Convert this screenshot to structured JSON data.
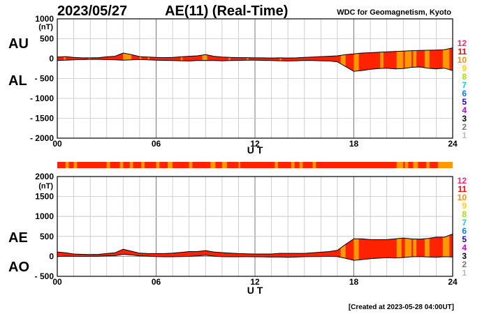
{
  "header": {
    "date": "2023/05/27",
    "title": "AE(11) (Real-Time)",
    "source": "WDC for Geomagnetism, Kyoto"
  },
  "footer": {
    "created": "[Created at 2023-05-28 04:00UT]"
  },
  "colors": {
    "fill": "#ff2200",
    "band": "#ff9900"
  },
  "legend": [
    {
      "label": "12",
      "color": "#ff2277"
    },
    {
      "label": "11",
      "color": "#ff0000"
    },
    {
      "label": "10",
      "color": "#ff8c00"
    },
    {
      "label": "9",
      "color": "#ffd400"
    },
    {
      "label": "8",
      "color": "#a8e000"
    },
    {
      "label": "7",
      "color": "#00d4e4"
    },
    {
      "label": "6",
      "color": "#0080ff"
    },
    {
      "label": "5",
      "color": "#2200cc"
    },
    {
      "label": "4",
      "color": "#cc00cc"
    },
    {
      "label": "3",
      "color": "#000000"
    },
    {
      "label": "2",
      "color": "#777777"
    },
    {
      "label": "1",
      "color": "#bbbbbb"
    }
  ],
  "chart_data": [
    {
      "type": "area",
      "id": "au_al",
      "left_labels": {
        "upper": "AU",
        "lower": "AL"
      },
      "unit": "(nT)",
      "xlabel": "U T",
      "xlim": [
        0,
        24
      ],
      "xticks": [
        0,
        6,
        12,
        18,
        24
      ],
      "xtick_labels": [
        "00",
        "06",
        "12",
        "18",
        "24"
      ],
      "ylim": [
        -2000,
        1000
      ],
      "yticks": [
        1000,
        500,
        0,
        -500,
        -1000,
        -1500,
        -2000
      ],
      "ytick_labels": [
        "1000",
        "500",
        "0",
        "- 500",
        "- 1000",
        "- 1500",
        "- 2000"
      ],
      "grid": true,
      "series": [
        {
          "name": "AU",
          "x": [
            0,
            0.5,
            1,
            1.5,
            2,
            2.5,
            3,
            3.5,
            4,
            4.5,
            5,
            5.5,
            6,
            6.5,
            7,
            7.5,
            8,
            8.5,
            9,
            9.5,
            10,
            10.5,
            11,
            11.5,
            12,
            12.5,
            13,
            13.5,
            14,
            14.5,
            15,
            15.5,
            16,
            16.5,
            17,
            17.5,
            18,
            18.5,
            19,
            19.5,
            20,
            20.5,
            21,
            21.5,
            22,
            22.5,
            23,
            23.5,
            24
          ],
          "values": [
            40,
            50,
            30,
            20,
            20,
            25,
            45,
            60,
            140,
            100,
            50,
            40,
            30,
            25,
            30,
            45,
            60,
            70,
            100,
            60,
            40,
            30,
            25,
            25,
            20,
            20,
            15,
            20,
            15,
            20,
            30,
            40,
            50,
            60,
            70,
            100,
            120,
            140,
            150,
            160,
            170,
            180,
            190,
            200,
            205,
            210,
            215,
            225,
            270
          ]
        },
        {
          "name": "AL",
          "x": [
            0,
            0.5,
            1,
            1.5,
            2,
            2.5,
            3,
            3.5,
            4,
            4.5,
            5,
            5.5,
            6,
            6.5,
            7,
            7.5,
            8,
            8.5,
            9,
            9.5,
            10,
            10.5,
            11,
            11.5,
            12,
            12.5,
            13,
            13.5,
            14,
            14.5,
            15,
            15.5,
            16,
            16.5,
            17,
            17.5,
            18,
            18.5,
            19,
            19.5,
            20,
            20.5,
            21,
            21.5,
            22,
            22.5,
            23,
            23.5,
            24
          ],
          "values": [
            -50,
            -40,
            -30,
            -25,
            -20,
            -20,
            -25,
            -30,
            -40,
            -30,
            -25,
            -30,
            -40,
            -45,
            -50,
            -55,
            -60,
            -50,
            -45,
            -50,
            -55,
            -50,
            -45,
            -40,
            -40,
            -45,
            -50,
            -55,
            -60,
            -55,
            -45,
            -50,
            -55,
            -60,
            -80,
            -200,
            -320,
            -300,
            -270,
            -250,
            -240,
            -260,
            -250,
            -220,
            -210,
            -240,
            -260,
            -240,
            -300
          ]
        }
      ]
    },
    {
      "type": "area",
      "id": "ae_ao",
      "left_labels": {
        "upper": "AE",
        "lower": "AO"
      },
      "unit": "(nT)",
      "xlabel": "U T",
      "xlim": [
        0,
        24
      ],
      "xticks": [
        0,
        6,
        12,
        18,
        24
      ],
      "xtick_labels": [
        "00",
        "06",
        "12",
        "18",
        "24"
      ],
      "ylim": [
        -500,
        2000
      ],
      "yticks": [
        2000,
        1500,
        1000,
        500,
        0,
        -500
      ],
      "ytick_labels": [
        "2000",
        "1500",
        "1000",
        "500",
        "0",
        "- 500"
      ],
      "grid": true,
      "series": [
        {
          "name": "AE",
          "x": [
            0,
            0.5,
            1,
            1.5,
            2,
            2.5,
            3,
            3.5,
            4,
            4.5,
            5,
            5.5,
            6,
            6.5,
            7,
            7.5,
            8,
            8.5,
            9,
            9.5,
            10,
            10.5,
            11,
            11.5,
            12,
            12.5,
            13,
            13.5,
            14,
            14.5,
            15,
            15.5,
            16,
            16.5,
            17,
            17.5,
            18,
            18.5,
            19,
            19.5,
            20,
            20.5,
            21,
            21.5,
            22,
            22.5,
            23,
            23.5,
            24
          ],
          "values": [
            110,
            90,
            60,
            50,
            45,
            50,
            70,
            90,
            180,
            130,
            80,
            70,
            70,
            70,
            80,
            100,
            120,
            120,
            145,
            110,
            95,
            80,
            70,
            65,
            60,
            60,
            60,
            75,
            75,
            75,
            75,
            90,
            105,
            120,
            150,
            300,
            440,
            440,
            420,
            420,
            420,
            440,
            460,
            440,
            430,
            450,
            480,
            480,
            560
          ]
        },
        {
          "name": "AO",
          "x": [
            0,
            0.5,
            1,
            1.5,
            2,
            2.5,
            3,
            3.5,
            4,
            4.5,
            5,
            5.5,
            6,
            6.5,
            7,
            7.5,
            8,
            8.5,
            9,
            9.5,
            10,
            10.5,
            11,
            11.5,
            12,
            12.5,
            13,
            13.5,
            14,
            14.5,
            15,
            15.5,
            16,
            16.5,
            17,
            17.5,
            18,
            18.5,
            19,
            19.5,
            20,
            20.5,
            21,
            21.5,
            22,
            22.5,
            23,
            23.5,
            24
          ],
          "values": [
            -5,
            5,
            0,
            -2,
            0,
            3,
            10,
            15,
            50,
            35,
            12,
            5,
            -5,
            -10,
            -10,
            -5,
            0,
            10,
            28,
            5,
            -8,
            -10,
            -10,
            -8,
            -10,
            -12,
            -18,
            -18,
            -22,
            -18,
            -8,
            -5,
            -3,
            0,
            -5,
            -50,
            -100,
            -80,
            -60,
            -45,
            -35,
            -40,
            -30,
            -10,
            -5,
            -15,
            -22,
            -8,
            -15
          ]
        }
      ],
      "bands": [
        [
          17.2,
          17.5
        ],
        [
          18,
          18.3
        ],
        [
          20.6,
          20.9
        ],
        [
          21.1,
          21.5
        ],
        [
          21.6,
          21.8
        ],
        [
          22.3,
          22.6
        ],
        [
          23.4,
          23.8
        ]
      ]
    }
  ],
  "au_bands": [
    [
      0.4,
      0.5
    ],
    [
      1.9,
      2.0
    ],
    [
      4.0,
      4.5
    ],
    [
      5.0,
      5.1
    ],
    [
      5.5,
      5.6
    ],
    [
      7.5,
      7.6
    ],
    [
      8.8,
      9.1
    ],
    [
      10.4,
      10.5
    ],
    [
      11.5,
      11.6
    ],
    [
      13.5,
      13.6
    ],
    [
      17.2,
      17.5
    ],
    [
      18.0,
      18.3
    ],
    [
      19.6,
      19.8
    ],
    [
      20.6,
      21.0
    ],
    [
      21.1,
      21.5
    ],
    [
      21.6,
      21.8
    ],
    [
      22.3,
      22.6
    ],
    [
      23.4,
      23.8
    ]
  ],
  "strip_bands": [
    [
      0.5,
      0.7
    ],
    [
      1.0,
      1.2
    ],
    [
      3.0,
      3.2
    ],
    [
      3.8,
      4.0
    ],
    [
      4.4,
      4.6
    ],
    [
      5.1,
      5.3
    ],
    [
      6.0,
      6.2
    ],
    [
      6.7,
      7.0
    ],
    [
      8.0,
      8.2
    ],
    [
      9.3,
      9.6
    ],
    [
      10.0,
      10.3
    ],
    [
      11.0,
      11.1
    ],
    [
      13.2,
      13.4
    ],
    [
      14.2,
      14.4
    ],
    [
      14.7,
      14.9
    ],
    [
      15.5,
      15.7
    ],
    [
      20.6,
      21.0
    ],
    [
      21.1,
      21.3
    ],
    [
      21.6,
      21.9
    ],
    [
      22.4,
      22.6
    ],
    [
      23.1,
      24.0
    ]
  ]
}
